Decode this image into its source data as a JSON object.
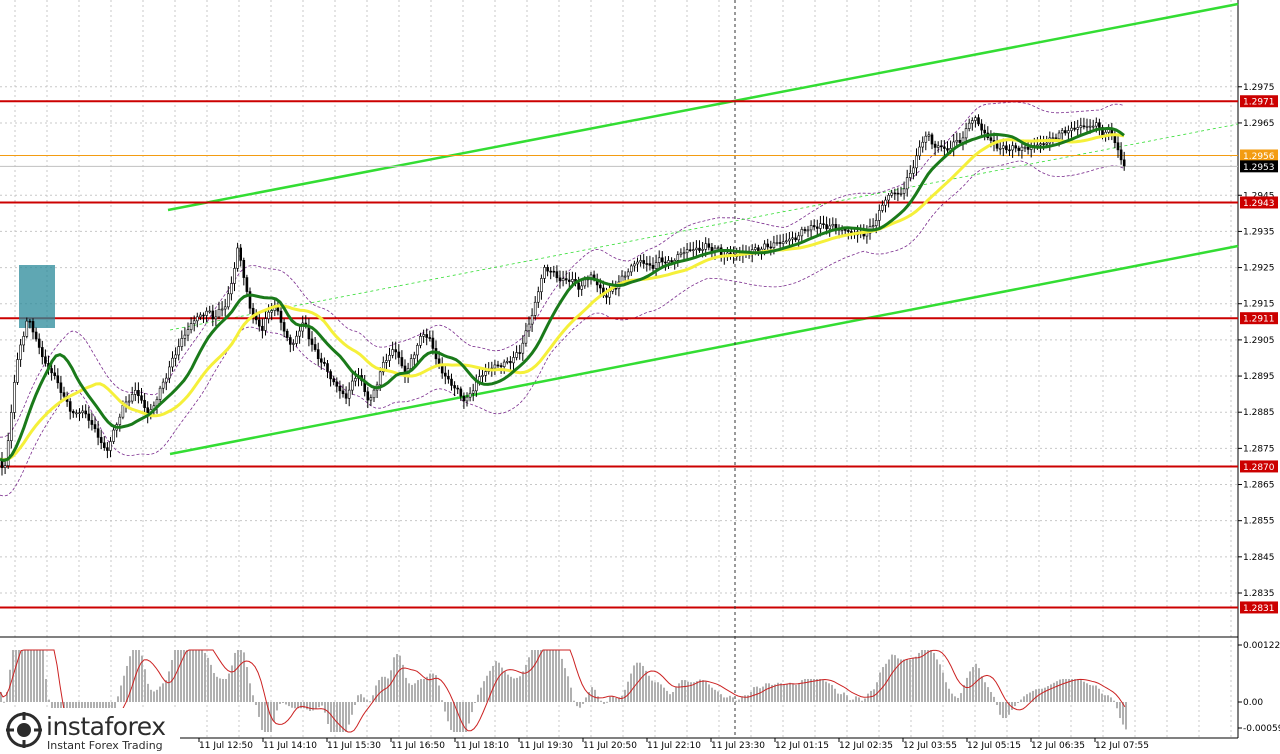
{
  "chart_data": [
    {
      "type": "candlestick",
      "timeframe_note": "",
      "price_axis": {
        "range": [
          1.2822,
          1.2999
        ],
        "ticks": [
          "1.2975",
          "1.2965",
          "1.2945",
          "1.2935",
          "1.2925",
          "1.2915",
          "1.2905",
          "1.2895",
          "1.2885",
          "1.2875",
          "1.2865",
          "1.2855",
          "1.2845",
          "1.2835"
        ]
      },
      "levels": [
        {
          "label": "1.2971",
          "value": 1.2971,
          "color": "#cc0000"
        },
        {
          "label": "1.2943",
          "value": 1.2943,
          "color": "#cc0000"
        },
        {
          "label": "1.2911",
          "value": 1.2911,
          "color": "#cc0000"
        },
        {
          "label": "1.2870",
          "value": 1.287,
          "color": "#cc0000"
        },
        {
          "label": "1.2831",
          "value": 1.2831,
          "color": "#cc0000"
        }
      ],
      "current_price": {
        "label": "1.2956",
        "value": 1.2956,
        "color": "#f39c12"
      },
      "last_price": {
        "label": "1.2953",
        "value": 1.2953
      },
      "time_axis": [
        "11 Jul 12:50",
        "11 Jul 14:10",
        "11 Jul 15:30",
        "11 Jul 16:50",
        "11 Jul 18:10",
        "11 Jul 19:30",
        "11 Jul 20:50",
        "11 Jul 22:10",
        "11 Jul 23:30",
        "12 Jul 01:15",
        "12 Jul 02:35",
        "12 Jul 03:55",
        "12 Jul 05:15",
        "12 Jul 06:35",
        "12 Jul 07:55"
      ],
      "price_path": [
        [
          0,
          1.2872
        ],
        [
          4,
          1.2868
        ],
        [
          8,
          1.2876
        ],
        [
          14,
          1.2893
        ],
        [
          20,
          1.2903
        ],
        [
          28,
          1.2911
        ],
        [
          34,
          1.2907
        ],
        [
          40,
          1.2902
        ],
        [
          46,
          1.2898
        ],
        [
          52,
          1.2896
        ],
        [
          58,
          1.2893
        ],
        [
          64,
          1.2889
        ],
        [
          70,
          1.2886
        ],
        [
          76,
          1.2884
        ],
        [
          82,
          1.2886
        ],
        [
          88,
          1.2883
        ],
        [
          94,
          1.2881
        ],
        [
          100,
          1.2877
        ],
        [
          106,
          1.2874
        ],
        [
          112,
          1.2878
        ],
        [
          118,
          1.2883
        ],
        [
          124,
          1.2887
        ],
        [
          130,
          1.2889
        ],
        [
          136,
          1.2891
        ],
        [
          142,
          1.2888
        ],
        [
          148,
          1.2884
        ],
        [
          154,
          1.2887
        ],
        [
          160,
          1.2891
        ],
        [
          166,
          1.2895
        ],
        [
          172,
          1.2899
        ],
        [
          178,
          1.2903
        ],
        [
          184,
          1.2906
        ],
        [
          190,
          1.2909
        ],
        [
          196,
          1.2911
        ],
        [
          202,
          1.2912
        ],
        [
          208,
          1.2913
        ],
        [
          214,
          1.2911
        ],
        [
          220,
          1.2913
        ],
        [
          226,
          1.2915
        ],
        [
          232,
          1.2921
        ],
        [
          238,
          1.2931
        ],
        [
          244,
          1.2922
        ],
        [
          250,
          1.2914
        ],
        [
          256,
          1.291
        ],
        [
          262,
          1.2908
        ],
        [
          268,
          1.2912
        ],
        [
          274,
          1.2915
        ],
        [
          280,
          1.2911
        ],
        [
          286,
          1.2906
        ],
        [
          292,
          1.2903
        ],
        [
          298,
          1.2907
        ],
        [
          304,
          1.291
        ],
        [
          310,
          1.2905
        ],
        [
          316,
          1.2901
        ],
        [
          322,
          1.2899
        ],
        [
          328,
          1.2896
        ],
        [
          334,
          1.2893
        ],
        [
          340,
          1.2891
        ],
        [
          346,
          1.2889
        ],
        [
          352,
          1.2893
        ],
        [
          358,
          1.2896
        ],
        [
          364,
          1.2891
        ],
        [
          370,
          1.2888
        ],
        [
          376,
          1.2892
        ],
        [
          382,
          1.2898
        ],
        [
          388,
          1.29
        ],
        [
          394,
          1.2903
        ],
        [
          400,
          1.2899
        ],
        [
          406,
          1.2895
        ],
        [
          412,
          1.29
        ],
        [
          418,
          1.2904
        ],
        [
          424,
          1.2907
        ],
        [
          430,
          1.2905
        ],
        [
          436,
          1.29
        ],
        [
          442,
          1.2896
        ],
        [
          448,
          1.2894
        ],
        [
          454,
          1.2892
        ],
        [
          460,
          1.289
        ],
        [
          466,
          1.2888
        ],
        [
          472,
          1.2891
        ],
        [
          478,
          1.2894
        ],
        [
          484,
          1.2896
        ],
        [
          490,
          1.2897
        ],
        [
          496,
          1.2898
        ],
        [
          502,
          1.2898
        ],
        [
          508,
          1.2899
        ],
        [
          514,
          1.29
        ],
        [
          520,
          1.2902
        ],
        [
          526,
          1.2907
        ],
        [
          532,
          1.2912
        ],
        [
          538,
          1.2918
        ],
        [
          544,
          1.2925
        ],
        [
          550,
          1.2924
        ],
        [
          556,
          1.2923
        ],
        [
          562,
          1.2921
        ],
        [
          568,
          1.2922
        ],
        [
          574,
          1.2921
        ],
        [
          580,
          1.2919
        ],
        [
          586,
          1.2922
        ],
        [
          592,
          1.2923
        ],
        [
          598,
          1.292
        ],
        [
          604,
          1.2917
        ],
        [
          610,
          1.2918
        ],
        [
          616,
          1.292
        ],
        [
          622,
          1.2922
        ],
        [
          628,
          1.2924
        ],
        [
          634,
          1.2926
        ],
        [
          640,
          1.2927
        ],
        [
          646,
          1.2926
        ],
        [
          652,
          1.2925
        ],
        [
          658,
          1.2927
        ],
        [
          664,
          1.2927
        ],
        [
          670,
          1.2926
        ],
        [
          676,
          1.2928
        ],
        [
          682,
          1.2929
        ],
        [
          688,
          1.293
        ],
        [
          694,
          1.293
        ],
        [
          700,
          1.293
        ],
        [
          706,
          1.2931
        ],
        [
          712,
          1.293
        ],
        [
          718,
          1.293
        ],
        [
          724,
          1.2928
        ],
        [
          730,
          1.2929
        ],
        [
          736,
          1.2928
        ],
        [
          742,
          1.2929
        ],
        [
          748,
          1.2929
        ],
        [
          754,
          1.293
        ],
        [
          760,
          1.293
        ],
        [
          766,
          1.2931
        ],
        [
          772,
          1.2931
        ],
        [
          778,
          1.2932
        ],
        [
          784,
          1.2932
        ],
        [
          790,
          1.2933
        ],
        [
          796,
          1.2933
        ],
        [
          802,
          1.2935
        ],
        [
          808,
          1.2936
        ],
        [
          814,
          1.2936
        ],
        [
          820,
          1.2937
        ],
        [
          826,
          1.2936
        ],
        [
          832,
          1.2937
        ],
        [
          838,
          1.2935
        ],
        [
          844,
          1.2936
        ],
        [
          850,
          1.2934
        ],
        [
          856,
          1.2935
        ],
        [
          862,
          1.2934
        ],
        [
          868,
          1.2935
        ],
        [
          874,
          1.2937
        ],
        [
          880,
          1.2941
        ],
        [
          886,
          1.2944
        ],
        [
          892,
          1.2946
        ],
        [
          898,
          1.2945
        ],
        [
          904,
          1.2947
        ],
        [
          910,
          1.2951
        ],
        [
          916,
          1.2955
        ],
        [
          922,
          1.296
        ],
        [
          928,
          1.2962
        ],
        [
          934,
          1.2958
        ],
        [
          940,
          1.2959
        ],
        [
          946,
          1.2957
        ],
        [
          952,
          1.2959
        ],
        [
          958,
          1.296
        ],
        [
          964,
          1.2961
        ],
        [
          970,
          1.2966
        ],
        [
          976,
          1.2966
        ],
        [
          982,
          1.2963
        ],
        [
          988,
          1.2961
        ],
        [
          994,
          1.2959
        ],
        [
          1000,
          1.2958
        ],
        [
          1006,
          1.2958
        ],
        [
          1012,
          1.2958
        ],
        [
          1018,
          1.2958
        ],
        [
          1024,
          1.2958
        ],
        [
          1030,
          1.2958
        ],
        [
          1036,
          1.2959
        ],
        [
          1042,
          1.2959
        ],
        [
          1048,
          1.296
        ],
        [
          1054,
          1.2961
        ],
        [
          1060,
          1.2962
        ],
        [
          1066,
          1.2963
        ],
        [
          1072,
          1.2963
        ],
        [
          1078,
          1.2964
        ],
        [
          1084,
          1.2964
        ],
        [
          1090,
          1.2964
        ],
        [
          1096,
          1.2965
        ],
        [
          1102,
          1.2962
        ],
        [
          1108,
          1.2963
        ],
        [
          1114,
          1.2961
        ],
        [
          1120,
          1.2955
        ],
        [
          1126,
          1.2953
        ]
      ],
      "macd_axis": {
        "ticks": [
          "0.00122",
          "0.00",
          "-0.00059"
        ]
      }
    }
  ],
  "logo": {
    "brand": "instaforex",
    "tagline": "Instant Forex Trading"
  }
}
